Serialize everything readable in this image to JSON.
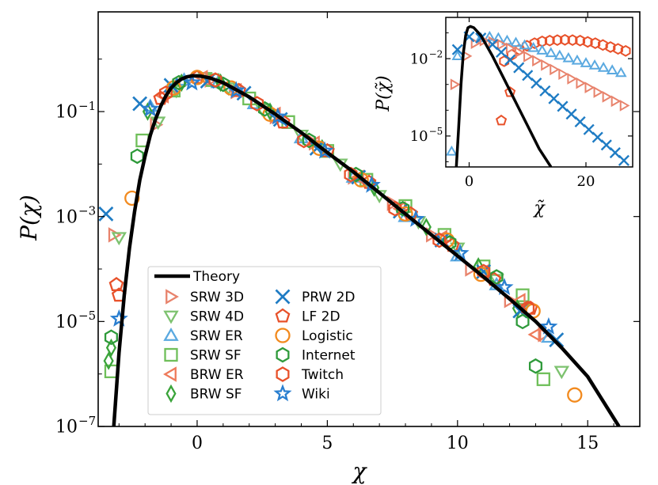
{
  "colors": {
    "srw": "#e8836c",
    "srw4d": "#7dc26f",
    "srwer": "#5aa9e0",
    "srwsf": "#6fbf5a",
    "brwer": "#ee7a5a",
    "brwsf": "#3aa43a",
    "prw": "#1f7cc4",
    "lf": "#e8512a",
    "logistic": "#f28a1e",
    "internet": "#2e9a3a",
    "twitch": "#e8512a",
    "wiki": "#2a7fd0",
    "theory": "#000000"
  },
  "chart_data": [
    {
      "id": "main",
      "type": "scatter",
      "xlabel": "χ",
      "ylabel": "P(χ)",
      "xlim": [
        -3.8,
        17
      ],
      "ylim_log10": [
        -7,
        0.9
      ],
      "x_ticks": [
        0,
        5,
        10,
        15
      ],
      "x_tick_labels": [
        "0",
        "5",
        "10",
        "15"
      ],
      "y_ticks": [
        -7,
        -5,
        -3,
        -1
      ],
      "y_tick_base": "10",
      "y_tick_exponents": [
        "−7",
        "−5",
        "−3",
        "−1"
      ],
      "theory": {
        "name": "Theory",
        "x": [
          -3.2,
          -3.0,
          -2.8,
          -2.6,
          -2.4,
          -2.2,
          -2.0,
          -1.8,
          -1.6,
          -1.4,
          -1.2,
          -1.0,
          -0.8,
          -0.6,
          -0.4,
          -0.2,
          0,
          0.2,
          0.5,
          1,
          2,
          3,
          4,
          5,
          6,
          7,
          8,
          9,
          10,
          11,
          12,
          13,
          14,
          15,
          16.2
        ],
        "log10y": [
          -7.0,
          -5.6,
          -4.5,
          -3.6,
          -2.9,
          -2.3,
          -1.85,
          -1.45,
          -1.15,
          -0.9,
          -0.7,
          -0.55,
          -0.45,
          -0.38,
          -0.34,
          -0.32,
          -0.32,
          -0.33,
          -0.36,
          -0.45,
          -0.72,
          -1.05,
          -1.4,
          -1.78,
          -2.15,
          -2.55,
          -2.95,
          -3.35,
          -3.75,
          -4.15,
          -4.57,
          -5.0,
          -5.5,
          -6.05,
          -7.0
        ]
      },
      "series": [
        {
          "name": "SRW 3D",
          "marker": "triangle-right",
          "color": "srw",
          "x": [
            -3.2,
            -1.6,
            -1.0,
            -0.5,
            0.5,
            1.5,
            3,
            4.5,
            6,
            7.5,
            9,
            10.5,
            12,
            13.3
          ],
          "log10y": [
            -3.35,
            -1.25,
            -0.65,
            -0.45,
            -0.4,
            -0.62,
            -1.1,
            -1.6,
            -2.25,
            -2.75,
            -3.35,
            -4.0,
            -4.6,
            -5.25
          ]
        },
        {
          "name": "SRW 4D",
          "marker": "triangle-down",
          "color": "srw4d",
          "x": [
            -3.0,
            -1.5,
            -0.8,
            0.3,
            1.2,
            2.5,
            4,
            5.5,
            7,
            8.5,
            10,
            11.5,
            12.5,
            14.0
          ],
          "log10y": [
            -3.4,
            -1.2,
            -0.6,
            -0.35,
            -0.55,
            -0.95,
            -1.45,
            -2.0,
            -2.6,
            -3.1,
            -3.6,
            -4.2,
            -4.75,
            -5.95
          ]
        },
        {
          "name": "SRW ER",
          "marker": "triangle-up",
          "color": "srwer",
          "x": [
            -1.8,
            -0.5,
            0.8,
            2.2,
            4,
            6,
            8,
            10,
            11.5,
            13.5
          ],
          "log10y": [
            -0.9,
            -0.4,
            -0.45,
            -0.85,
            -1.5,
            -2.25,
            -3.0,
            -3.75,
            -4.3,
            -5.3
          ]
        },
        {
          "name": "SRW SF",
          "marker": "square",
          "color": "srwsf",
          "x": [
            -3.3,
            -2.1,
            -0.9,
            0.6,
            2.0,
            3.5,
            5,
            6.5,
            8,
            9.5,
            11,
            12.5,
            13.3
          ],
          "log10y": [
            -5.95,
            -1.55,
            -0.6,
            -0.4,
            -0.75,
            -1.2,
            -1.75,
            -2.3,
            -2.8,
            -3.35,
            -3.95,
            -4.5,
            -6.1
          ]
        },
        {
          "name": "BRW ER",
          "marker": "triangle-left",
          "color": "brwer",
          "x": [
            -1.3,
            0.2,
            1.5,
            3,
            4.5,
            6.2,
            7.8,
            9.4,
            11,
            12.4,
            13.0
          ],
          "log10y": [
            -0.7,
            -0.35,
            -0.6,
            -1.05,
            -1.6,
            -2.25,
            -2.85,
            -3.4,
            -4.05,
            -4.6,
            -5.25
          ]
        },
        {
          "name": "BRW SF",
          "marker": "diamond",
          "color": "brwsf",
          "x": [
            -3.4,
            -3.3,
            -1.9,
            -0.6,
            0.9,
            2.8,
            4.8,
            6.8,
            8.8,
            10.8,
            12.3
          ],
          "log10y": [
            -5.75,
            -5.5,
            -1.0,
            -0.45,
            -0.45,
            -1.0,
            -1.7,
            -2.45,
            -3.2,
            -3.95,
            -4.75
          ]
        },
        {
          "name": "PRW 2D",
          "marker": "x",
          "color": "prw",
          "x": [
            -3.5,
            -2.2,
            -1.0,
            0.4,
            1.8,
            3.2,
            4.6,
            6.2,
            7.8,
            9.4,
            11.0,
            12.4,
            13.8
          ],
          "log10y": [
            -2.95,
            -0.85,
            -0.5,
            -0.42,
            -0.65,
            -1.15,
            -1.7,
            -2.25,
            -2.9,
            -3.45,
            -4.05,
            -4.8,
            -5.35
          ]
        },
        {
          "name": "LF 2D",
          "marker": "pentagon",
          "color": "lf",
          "x": [
            -3.1,
            -3.0,
            -1.4,
            0.0,
            1.6,
            3.3,
            5.0,
            6.6,
            8.2,
            9.8,
            11.4,
            12.8
          ],
          "log10y": [
            -4.3,
            -4.5,
            -0.75,
            -0.35,
            -0.6,
            -1.2,
            -1.75,
            -2.35,
            -2.95,
            -3.55,
            -4.2,
            -4.75
          ]
        },
        {
          "name": "Logistic",
          "marker": "circle",
          "color": "logistic",
          "x": [
            -2.5,
            -0.9,
            0.0,
            1.3,
            2.8,
            4.7,
            6.3,
            8.0,
            9.6,
            10.9,
            12.9,
            14.5
          ],
          "log10y": [
            -2.65,
            -0.55,
            -0.35,
            -0.55,
            -1.05,
            -1.7,
            -2.3,
            -2.95,
            -3.45,
            -4.1,
            -4.8,
            -6.4
          ]
        },
        {
          "name": "Internet",
          "marker": "hexagon",
          "color": "internet",
          "x": [
            -3.3,
            -2.3,
            -0.7,
            1.0,
            2.6,
            4.3,
            6.1,
            7.9,
            9.7,
            11.5,
            12.5,
            13.0
          ],
          "log10y": [
            -5.3,
            -1.85,
            -0.45,
            -0.48,
            -0.95,
            -1.55,
            -2.2,
            -2.85,
            -3.5,
            -4.15,
            -5.0,
            -5.85
          ]
        },
        {
          "name": "Twitch",
          "marker": "hexagon",
          "color": "twitch",
          "x": [
            -1.2,
            0.7,
            2.3,
            4.1,
            5.9,
            7.6,
            9.3,
            11.0,
            12.7
          ],
          "log10y": [
            -0.65,
            -0.4,
            -0.85,
            -1.55,
            -2.2,
            -2.85,
            -3.45,
            -4.05,
            -4.75
          ]
        },
        {
          "name": "Wiki",
          "marker": "star",
          "color": "wiki",
          "x": [
            -3.0,
            -1.8,
            -0.2,
            1.5,
            3.1,
            4.9,
            6.7,
            8.4,
            10.1,
            11.8,
            13.5
          ],
          "log10y": [
            -4.95,
            -0.95,
            -0.45,
            -0.6,
            -1.1,
            -1.75,
            -2.4,
            -3.05,
            -3.7,
            -4.35,
            -5.1
          ]
        }
      ]
    },
    {
      "id": "inset",
      "type": "scatter",
      "xlabel": "χ̃",
      "ylabel": "P(χ̃)",
      "xlim": [
        -4,
        28
      ],
      "ylim_log10": [
        -6.2,
        -0.4
      ],
      "x_ticks": [
        0,
        20
      ],
      "x_tick_labels": [
        "0",
        "20"
      ],
      "y_ticks": [
        -5,
        -2
      ],
      "y_tick_base": "10",
      "y_tick_exponents": [
        "−5",
        "−2"
      ],
      "theory": {
        "x": [
          -2.2,
          -1.8,
          -1.4,
          -1.0,
          -0.6,
          -0.2,
          0.2,
          0.8,
          2,
          4,
          6,
          8,
          10,
          12,
          14
        ],
        "log10y": [
          -6.2,
          -4.7,
          -3.0,
          -1.8,
          -1.1,
          -0.8,
          -0.75,
          -0.8,
          -1.1,
          -1.9,
          -2.8,
          -3.7,
          -4.6,
          -5.5,
          -6.2
        ]
      },
      "series": [
        {
          "name": "Twitch",
          "marker": "hexagon",
          "color": "twitch",
          "x": [
            6,
            7.3,
            8.6,
            9.9,
            11.2,
            12.5,
            13.8,
            15.1,
            16.4,
            17.7,
            19.0,
            20.3,
            21.6,
            22.9,
            24.2,
            25.5,
            26.8
          ],
          "log10y": [
            -2.1,
            -1.85,
            -1.65,
            -1.5,
            -1.4,
            -1.33,
            -1.3,
            -1.28,
            -1.27,
            -1.28,
            -1.3,
            -1.35,
            -1.4,
            -1.47,
            -1.55,
            -1.62,
            -1.7
          ]
        },
        {
          "name": "SRW ER",
          "marker": "triangle-up",
          "color": "srwer",
          "x": [
            -3,
            -2,
            2,
            3.5,
            5,
            6.5,
            8,
            9.5,
            11,
            12.5,
            14,
            15.5,
            17,
            18.5,
            20,
            21.5,
            23,
            24.5,
            26
          ],
          "log10y": [
            -5.6,
            -1.9,
            -1.2,
            -1.15,
            -1.2,
            -1.3,
            -1.38,
            -1.48,
            -1.58,
            -1.68,
            -1.78,
            -1.88,
            -1.98,
            -2.07,
            -2.17,
            -2.26,
            -2.35,
            -2.45,
            -2.55
          ]
        },
        {
          "name": "SRW 3D",
          "marker": "triangle-right",
          "color": "srw",
          "x": [
            -2.5,
            -0.5,
            1,
            2.5,
            4,
            5.5,
            7,
            8.5,
            10,
            11.5,
            13,
            14.5,
            16,
            17.5,
            19,
            20.5,
            22,
            23.5,
            25,
            26.5
          ],
          "log10y": [
            -3.0,
            -1.9,
            -1.4,
            -1.3,
            -1.35,
            -1.45,
            -1.6,
            -1.75,
            -1.92,
            -2.08,
            -2.25,
            -2.42,
            -2.6,
            -2.78,
            -2.95,
            -3.12,
            -3.3,
            -3.48,
            -3.65,
            -3.82
          ]
        },
        {
          "name": "PRW 2D",
          "marker": "x",
          "color": "prw",
          "x": [
            -2,
            0,
            2,
            4,
            5.5,
            7,
            8.5,
            10,
            11.5,
            13,
            14.5,
            16,
            17.5,
            19,
            20.5,
            22,
            23.5,
            25,
            26.5
          ],
          "log10y": [
            -1.65,
            -1.15,
            -1.2,
            -1.45,
            -1.75,
            -2.05,
            -2.35,
            -2.65,
            -2.95,
            -3.25,
            -3.55,
            -3.85,
            -4.15,
            -4.45,
            -4.75,
            -5.05,
            -5.35,
            -5.65,
            -5.95
          ]
        },
        {
          "name": "LF 2D",
          "marker": "pentagon",
          "color": "lf",
          "x": [
            5.5,
            7.0
          ],
          "log10y": [
            -4.4,
            -3.3
          ]
        }
      ]
    }
  ]
}
